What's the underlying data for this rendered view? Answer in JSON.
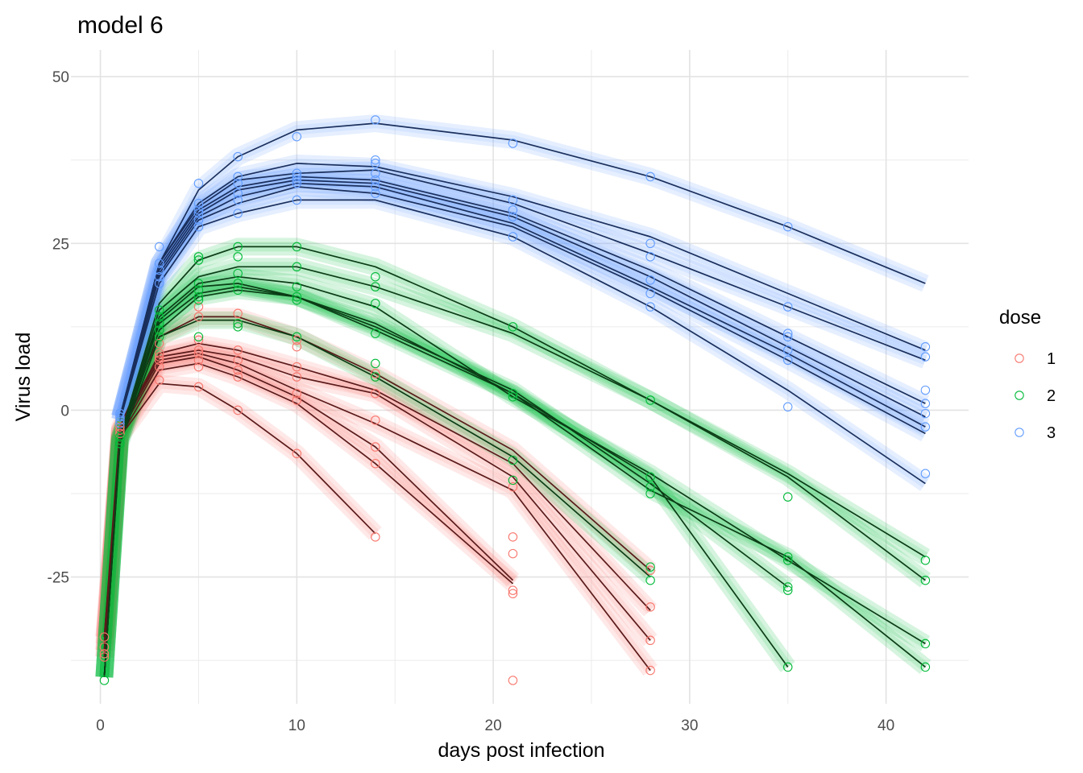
{
  "chart_data": {
    "type": "line",
    "title": "model 6",
    "xlabel": "days post infection",
    "ylabel": "Virus load",
    "xlim": [
      -1.5,
      44.2
    ],
    "ylim": [
      -44,
      54
    ],
    "x_ticks": [
      0,
      10,
      20,
      30,
      40
    ],
    "y_ticks": [
      -25,
      0,
      25,
      50
    ],
    "grid": true,
    "legend": {
      "title": "dose",
      "position": "right",
      "entries": [
        "1",
        "2",
        "3"
      ]
    },
    "colors": {
      "1": {
        "point": "#F8766D",
        "line": "#5a1a1a",
        "band": "#F8766D"
      },
      "2": {
        "point": "#00BA38",
        "line": "#0b3d16",
        "band": "#00BA38"
      },
      "3": {
        "point": "#619CFF",
        "line": "#1a2f5c",
        "band": "#619CFF"
      }
    },
    "series": [
      {
        "name": "1",
        "x": [
          0.2,
          1,
          3,
          5,
          7,
          10,
          14
        ],
        "y": [
          -34,
          -4,
          4,
          3.5,
          0,
          -6.5,
          -18.5
        ]
      },
      {
        "name": "1",
        "x": [
          0.2,
          1,
          3,
          5,
          7,
          10,
          14,
          21
        ],
        "y": [
          -37,
          -4,
          6,
          7,
          5,
          1,
          -8,
          -26
        ]
      },
      {
        "name": "1",
        "x": [
          0.2,
          1,
          3,
          5,
          7,
          10,
          14,
          21
        ],
        "y": [
          -36,
          -3.5,
          7,
          8,
          6,
          2,
          -5.5,
          -25.5
        ]
      },
      {
        "name": "1",
        "x": [
          0.2,
          1,
          3,
          5,
          7,
          10,
          14,
          21,
          28
        ],
        "y": [
          -37,
          -3,
          7.5,
          8.5,
          7,
          3,
          -2,
          -12,
          -39
        ]
      },
      {
        "name": "1",
        "x": [
          0.2,
          1,
          3,
          5,
          7,
          10,
          14,
          21,
          28
        ],
        "y": [
          -36,
          -3,
          8,
          9,
          8,
          5,
          2.5,
          -10,
          -34.5
        ]
      },
      {
        "name": "1",
        "x": [
          0.2,
          1,
          3,
          5,
          7,
          10,
          14,
          21,
          28
        ],
        "y": [
          -35,
          -3,
          8.5,
          10,
          9,
          6.5,
          3,
          -8,
          -30
        ]
      },
      {
        "name": "1",
        "x": [
          0.2,
          1,
          3,
          5,
          7,
          10,
          14,
          21,
          28
        ],
        "y": [
          -34,
          -2.5,
          11,
          14,
          14,
          11,
          5.5,
          -6,
          -24
        ]
      },
      {
        "name": "2",
        "x": [
          0.2,
          1,
          3,
          5,
          7,
          10,
          14,
          21,
          28
        ],
        "y": [
          -40,
          -5,
          11,
          13.5,
          13.5,
          11,
          5,
          -7,
          -25
        ]
      },
      {
        "name": "2",
        "x": [
          0.2,
          1,
          3,
          5,
          7,
          10,
          14,
          21,
          28,
          35
        ],
        "y": [
          -40,
          -4.5,
          12,
          17,
          18,
          17,
          12,
          2.5,
          -10,
          -38.5
        ]
      },
      {
        "name": "2",
        "x": [
          0.2,
          1,
          3,
          5,
          7,
          10,
          14,
          21,
          28,
          35
        ],
        "y": [
          -40,
          -4.5,
          13,
          17.5,
          18.5,
          17,
          12.5,
          3,
          -11,
          -26.5
        ]
      },
      {
        "name": "2",
        "x": [
          0.2,
          1,
          3,
          5,
          7,
          10,
          14,
          21,
          28,
          35,
          42
        ],
        "y": [
          -40,
          -4.5,
          13.5,
          18.5,
          19,
          17,
          13,
          2.5,
          -12,
          -22,
          -38.5
        ]
      },
      {
        "name": "2",
        "x": [
          0.2,
          1,
          3,
          5,
          7,
          10,
          14,
          21,
          28,
          35,
          42
        ],
        "y": [
          -40,
          -4,
          14,
          19,
          20,
          19,
          15.5,
          2,
          -9.5,
          -22.5,
          -35
        ]
      },
      {
        "name": "2",
        "x": [
          0.2,
          1,
          3,
          5,
          7,
          10,
          14,
          21,
          28,
          35,
          42
        ],
        "y": [
          -40,
          -4,
          15,
          20,
          21.5,
          21.5,
          18.5,
          11.5,
          1.5,
          -10,
          -25.5
        ]
      },
      {
        "name": "2",
        "x": [
          0.2,
          1,
          3,
          5,
          7,
          10,
          14,
          21,
          28,
          35,
          42
        ],
        "y": [
          -40,
          -4,
          16,
          22.5,
          24.5,
          24.5,
          21.5,
          12.5,
          1.5,
          -9.5,
          -22
        ]
      },
      {
        "name": "3",
        "x": [
          1,
          3,
          5,
          7,
          10,
          14,
          21,
          28,
          35,
          42
        ],
        "y": [
          -1.5,
          19,
          27.5,
          29.5,
          31.5,
          31.5,
          26,
          15.5,
          3,
          -11
        ]
      },
      {
        "name": "3",
        "x": [
          1,
          3,
          5,
          7,
          10,
          14,
          21,
          28,
          35,
          42
        ],
        "y": [
          -1.5,
          20,
          28.5,
          31,
          33.5,
          32.5,
          27.5,
          18,
          7.5,
          -3.5
        ]
      },
      {
        "name": "3",
        "x": [
          1,
          3,
          5,
          7,
          10,
          14,
          21,
          28,
          35,
          42
        ],
        "y": [
          -1.5,
          20.5,
          29,
          32,
          34,
          33.5,
          28,
          18.5,
          8.5,
          -2.5
        ]
      },
      {
        "name": "3",
        "x": [
          1,
          3,
          5,
          7,
          10,
          14,
          21,
          28,
          35,
          42
        ],
        "y": [
          -1,
          21,
          29.5,
          33,
          34.5,
          34,
          29,
          20,
          9.5,
          -1
        ]
      },
      {
        "name": "3",
        "x": [
          1,
          3,
          5,
          7,
          10,
          14,
          21,
          28,
          35,
          42
        ],
        "y": [
          -1,
          21.5,
          30,
          33.5,
          35,
          34.5,
          29.5,
          21,
          11,
          1
        ]
      },
      {
        "name": "3",
        "x": [
          1,
          3,
          5,
          7,
          10,
          14,
          21,
          28,
          35,
          42
        ],
        "y": [
          -1,
          22,
          30.5,
          34.5,
          35.5,
          36,
          31,
          23.5,
          15.5,
          7.5
        ]
      },
      {
        "name": "3",
        "x": [
          1,
          3,
          5,
          7,
          10,
          14,
          21,
          28,
          35,
          42
        ],
        "y": [
          -1,
          22,
          31,
          35,
          37,
          36.5,
          32,
          26,
          17.5,
          9
        ]
      },
      {
        "name": "3",
        "x": [
          1,
          3,
          5,
          7,
          10,
          14,
          21,
          28,
          35,
          42
        ],
        "y": [
          -1,
          22,
          33,
          38,
          42,
          43,
          40.5,
          35,
          27.5,
          19
        ]
      }
    ],
    "points": [
      {
        "group": "1",
        "x": [
          0.2,
          0.2,
          0.2,
          0.2,
          1,
          1,
          1,
          1,
          1,
          3,
          3,
          3,
          3,
          3,
          3,
          3,
          5,
          5,
          5,
          5,
          5,
          5,
          5,
          5,
          7,
          7,
          7,
          7,
          7,
          7,
          7,
          10,
          10,
          10,
          10,
          10,
          10,
          10,
          14,
          14,
          14,
          14,
          14,
          14,
          14,
          21,
          21,
          21,
          21,
          21,
          21,
          28,
          28,
          28,
          28
        ],
        "y": [
          -34,
          -35.5,
          -37,
          -36.5,
          -2.5,
          -3,
          -3.5,
          -4,
          -4.5,
          4.5,
          6.5,
          7.5,
          8,
          8.5,
          10,
          11,
          3.5,
          6.5,
          7.5,
          8.5,
          9,
          10.5,
          14,
          15.5,
          0,
          5,
          6,
          7.5,
          9,
          13,
          14.5,
          -6.5,
          1.5,
          2.5,
          5,
          6.5,
          9.5,
          10.5,
          -19,
          -8,
          -5.5,
          -1.5,
          2.5,
          5,
          5.5,
          -40.5,
          -27.5,
          -27,
          -21.5,
          -19,
          -11.5,
          -39,
          -34.5,
          -29.5,
          -24
        ]
      },
      {
        "group": "2",
        "x": [
          0.2,
          1,
          1,
          1,
          3,
          3,
          3,
          3,
          3,
          5,
          5,
          5,
          5,
          5,
          5,
          5,
          7,
          7,
          7,
          7,
          7,
          7,
          7,
          10,
          10,
          10,
          10,
          10,
          10,
          14,
          14,
          14,
          14,
          14,
          14,
          21,
          21,
          21,
          21,
          21,
          28,
          28,
          28,
          28,
          28,
          28,
          35,
          35,
          35,
          35,
          35,
          35,
          42,
          42,
          42,
          42
        ],
        "y": [
          -40.5,
          -4.5,
          -4,
          -5,
          11,
          12,
          13,
          14,
          15,
          11,
          16.5,
          17,
          18,
          19,
          22.5,
          23,
          12.5,
          13,
          18,
          19,
          20.5,
          23,
          24.5,
          16.5,
          17,
          18.5,
          21.5,
          24.5,
          11,
          5,
          7,
          11.5,
          16,
          18.5,
          20,
          -10.5,
          -7.5,
          2,
          2.5,
          12.5,
          -25.5,
          -23.5,
          -12.5,
          -11.5,
          -10,
          1.5,
          -38.5,
          -27,
          -26.5,
          -22.5,
          -22,
          -13,
          -38.5,
          -35,
          -25.5,
          -22.5
        ]
      },
      {
        "group": "3",
        "x": [
          1,
          1,
          1,
          1,
          3,
          3,
          3,
          3,
          3,
          5,
          5,
          5,
          5,
          5,
          5,
          7,
          7,
          7,
          7,
          7,
          7,
          10,
          10,
          10,
          10,
          10,
          10,
          14,
          14,
          14,
          14,
          14,
          14,
          14,
          21,
          21,
          21,
          21,
          21,
          28,
          28,
          28,
          28,
          28,
          28,
          35,
          35,
          35,
          35,
          35,
          35,
          35,
          42,
          42,
          42,
          42,
          42,
          42,
          42
        ],
        "y": [
          -1,
          -1.5,
          -2,
          -0.5,
          20,
          21,
          22,
          24.5,
          19,
          27.5,
          28.5,
          30,
          31,
          34,
          29.5,
          29.5,
          31.5,
          32.5,
          34,
          35,
          38,
          31.5,
          34,
          34.5,
          35,
          35.5,
          41,
          32.5,
          33.5,
          34.5,
          35.5,
          37,
          37.5,
          43.5,
          26,
          29,
          30,
          31.5,
          40,
          15.5,
          17.5,
          19.5,
          23,
          25,
          35,
          0.5,
          7.5,
          9,
          11,
          11.5,
          15.5,
          27.5,
          -9.5,
          -2.5,
          -0.5,
          1,
          3,
          8,
          9.5
        ]
      }
    ]
  }
}
